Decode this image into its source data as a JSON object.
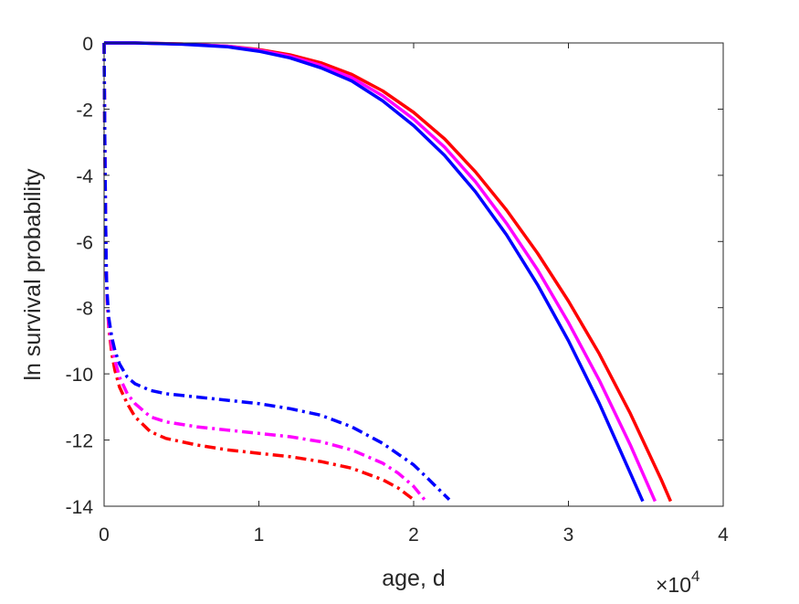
{
  "chart_data": {
    "type": "line",
    "title": "",
    "xlabel": "age, d",
    "ylabel": "ln survival probability",
    "x_exponent_label": "×10",
    "x_exponent_power": "4",
    "xlim": [
      0,
      40000
    ],
    "ylim": [
      -14,
      0
    ],
    "x_ticks": [
      0,
      10000,
      20000,
      30000,
      40000
    ],
    "x_tick_labels": [
      "0",
      "1",
      "2",
      "3",
      "4"
    ],
    "y_ticks": [
      0,
      -2,
      -4,
      -6,
      -8,
      -10,
      -12,
      -14
    ],
    "y_tick_labels": [
      "0",
      "-2",
      "-4",
      "-6",
      "-8",
      "-10",
      "-12",
      "-14"
    ],
    "grid": false,
    "box": true,
    "colors": {
      "red": "#ff0000",
      "magenta": "#ff00ff",
      "blue": "#0000ff",
      "axis": "#262626"
    },
    "series": [
      {
        "color": "#ff0000",
        "style": "solid",
        "x": [
          0,
          2000,
          5000,
          8000,
          10000,
          12000,
          14000,
          16000,
          18000,
          20000,
          22000,
          24000,
          26000,
          28000,
          30000,
          32000,
          34000,
          36000,
          36600
        ],
        "y": [
          0,
          0,
          -0.03,
          -0.1,
          -0.2,
          -0.36,
          -0.6,
          -0.95,
          -1.45,
          -2.1,
          -2.9,
          -3.9,
          -5.05,
          -6.35,
          -7.8,
          -9.4,
          -11.2,
          -13.2,
          -13.85
        ]
      },
      {
        "color": "#ff00ff",
        "style": "solid",
        "x": [
          0,
          2000,
          5000,
          8000,
          10000,
          12000,
          14000,
          16000,
          18000,
          20000,
          22000,
          24000,
          26000,
          28000,
          30000,
          32000,
          34000,
          35600
        ],
        "y": [
          0,
          0,
          -0.03,
          -0.1,
          -0.22,
          -0.4,
          -0.68,
          -1.05,
          -1.6,
          -2.3,
          -3.15,
          -4.2,
          -5.45,
          -6.85,
          -8.45,
          -10.2,
          -12.15,
          -13.85
        ]
      },
      {
        "color": "#0000ff",
        "style": "solid",
        "x": [
          0,
          2000,
          5000,
          8000,
          10000,
          12000,
          14000,
          16000,
          18000,
          20000,
          22000,
          24000,
          26000,
          28000,
          30000,
          32000,
          34000,
          34800
        ],
        "y": [
          0,
          0,
          -0.04,
          -0.12,
          -0.25,
          -0.45,
          -0.75,
          -1.15,
          -1.75,
          -2.5,
          -3.4,
          -4.5,
          -5.8,
          -7.3,
          -9.0,
          -10.9,
          -13.0,
          -13.85
        ]
      },
      {
        "color": "#ff0000",
        "style": "dashdot",
        "x": [
          0,
          50,
          100,
          150,
          200,
          300,
          500,
          700,
          1000,
          1500,
          2000,
          3000,
          4000,
          6000,
          8000,
          10000,
          12000,
          14000,
          16000,
          18000,
          19000,
          20000
        ],
        "y": [
          0,
          -3,
          -5.5,
          -7,
          -7.8,
          -8.6,
          -9.4,
          -9.9,
          -10.4,
          -10.9,
          -11.3,
          -11.75,
          -11.95,
          -12.15,
          -12.3,
          -12.4,
          -12.5,
          -12.65,
          -12.85,
          -13.2,
          -13.45,
          -13.8
        ]
      },
      {
        "color": "#ff00ff",
        "style": "dashdot",
        "x": [
          0,
          50,
          100,
          150,
          200,
          300,
          500,
          700,
          1000,
          1500,
          2000,
          3000,
          4000,
          6000,
          8000,
          10000,
          12000,
          14000,
          16000,
          18000,
          19000,
          20000,
          20700
        ],
        "y": [
          0,
          -3,
          -5.5,
          -7,
          -7.7,
          -8.5,
          -9.2,
          -9.6,
          -10.1,
          -10.6,
          -10.9,
          -11.3,
          -11.45,
          -11.6,
          -11.7,
          -11.8,
          -11.9,
          -12.05,
          -12.3,
          -12.7,
          -13.0,
          -13.4,
          -13.8
        ]
      },
      {
        "color": "#0000ff",
        "style": "dashdot",
        "x": [
          0,
          50,
          100,
          150,
          200,
          300,
          500,
          700,
          1000,
          1500,
          2000,
          3000,
          4000,
          6000,
          8000,
          10000,
          12000,
          14000,
          16000,
          18000,
          20000,
          21000,
          22300
        ],
        "y": [
          0,
          -3,
          -5.5,
          -7,
          -7.6,
          -8.3,
          -8.9,
          -9.3,
          -9.7,
          -10.1,
          -10.3,
          -10.5,
          -10.6,
          -10.7,
          -10.8,
          -10.9,
          -11.05,
          -11.25,
          -11.6,
          -12.1,
          -12.75,
          -13.2,
          -13.8
        ]
      }
    ]
  }
}
